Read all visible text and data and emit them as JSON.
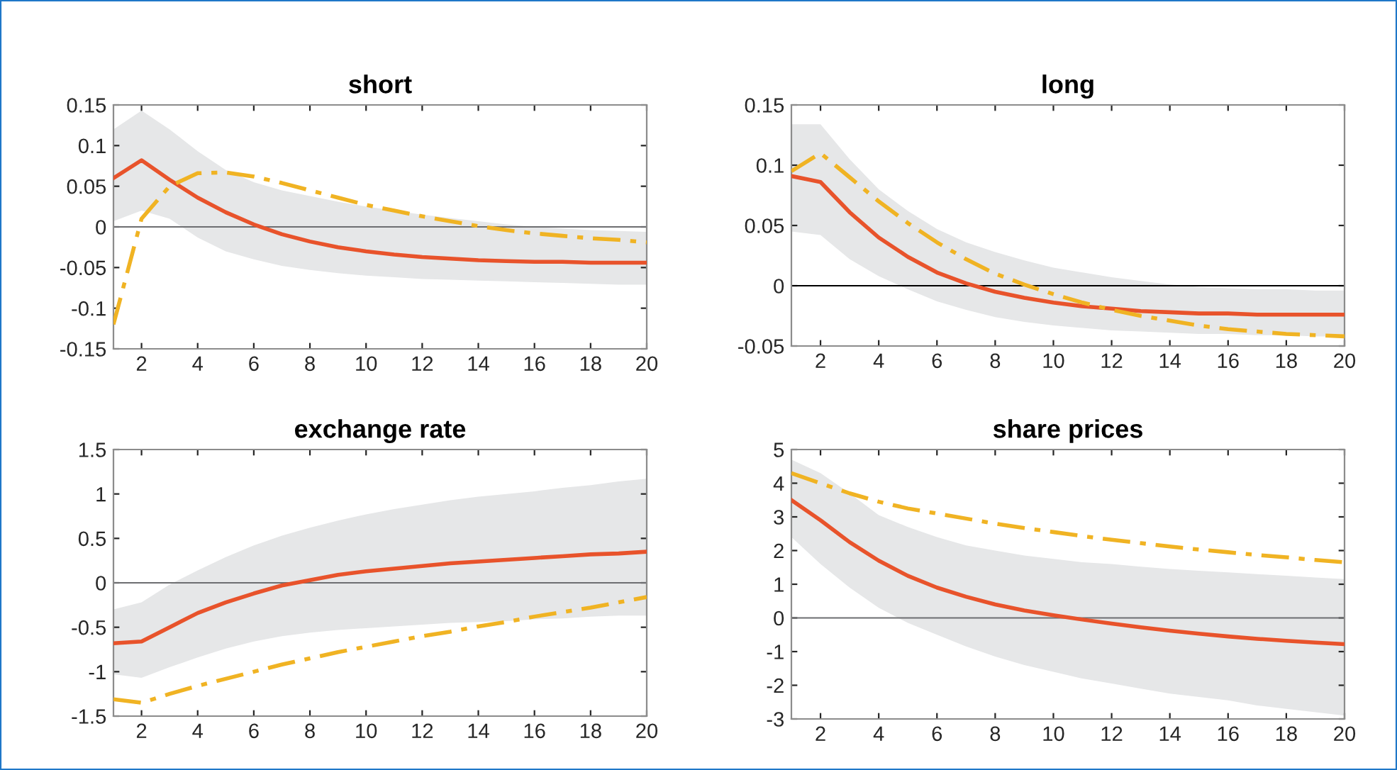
{
  "chart_data": [
    {
      "type": "line",
      "title": "short",
      "x": [
        1,
        2,
        3,
        4,
        5,
        6,
        7,
        8,
        9,
        10,
        11,
        12,
        13,
        14,
        15,
        16,
        17,
        18,
        19,
        20
      ],
      "series": [
        {
          "color": "#e8532b",
          "line_style": "solid",
          "values": [
            0.06,
            0.082,
            0.058,
            0.036,
            0.018,
            0.003,
            -0.009,
            -0.018,
            -0.025,
            -0.03,
            -0.034,
            -0.037,
            -0.039,
            -0.041,
            -0.042,
            -0.043,
            -0.043,
            -0.044,
            -0.044,
            -0.044
          ],
          "upper": [
            0.12,
            0.143,
            0.12,
            0.093,
            0.07,
            0.055,
            0.045,
            0.038,
            0.031,
            0.025,
            0.02,
            0.015,
            0.011,
            0.007,
            0.003,
            0.0,
            -0.002,
            -0.004,
            -0.005,
            -0.006
          ],
          "lower": [
            0.007,
            0.02,
            0.01,
            -0.013,
            -0.03,
            -0.04,
            -0.048,
            -0.053,
            -0.057,
            -0.06,
            -0.062,
            -0.064,
            -0.065,
            -0.066,
            -0.067,
            -0.068,
            -0.069,
            -0.07,
            -0.071,
            -0.071
          ]
        },
        {
          "color": "#f0b323",
          "line_style": "dashed",
          "values": [
            -0.12,
            0.01,
            0.05,
            0.066,
            0.067,
            0.062,
            0.054,
            0.045,
            0.036,
            0.027,
            0.02,
            0.013,
            0.007,
            0.001,
            -0.004,
            -0.008,
            -0.011,
            -0.014,
            -0.016,
            -0.019
          ]
        }
      ],
      "xlim": [
        1,
        20
      ],
      "xticks": [
        2,
        4,
        6,
        8,
        10,
        12,
        14,
        16,
        18,
        20
      ],
      "ylim": [
        -0.15,
        0.15
      ],
      "yticks": [
        -0.15,
        -0.1,
        -0.05,
        0,
        0.05,
        0.1,
        0.15
      ],
      "ref_lines": [
        {
          "axis": "y",
          "value": 0,
          "color": "#6d6e71"
        }
      ],
      "grid": false,
      "legend": false
    },
    {
      "type": "line",
      "title": "long",
      "x": [
        1,
        2,
        3,
        4,
        5,
        6,
        7,
        8,
        9,
        10,
        11,
        12,
        13,
        14,
        15,
        16,
        17,
        18,
        19,
        20
      ],
      "series": [
        {
          "color": "#e8532b",
          "line_style": "solid",
          "values": [
            0.091,
            0.086,
            0.061,
            0.04,
            0.024,
            0.011,
            0.002,
            -0.005,
            -0.01,
            -0.014,
            -0.017,
            -0.019,
            -0.021,
            -0.022,
            -0.023,
            -0.023,
            -0.024,
            -0.024,
            -0.024,
            -0.024
          ],
          "upper": [
            0.134,
            0.134,
            0.105,
            0.08,
            0.062,
            0.047,
            0.036,
            0.028,
            0.021,
            0.015,
            0.011,
            0.007,
            0.004,
            0.001,
            -0.001,
            -0.002,
            -0.003,
            -0.003,
            -0.004,
            -0.004
          ],
          "lower": [
            0.045,
            0.042,
            0.022,
            0.008,
            -0.003,
            -0.013,
            -0.02,
            -0.026,
            -0.03,
            -0.033,
            -0.035,
            -0.037,
            -0.038,
            -0.039,
            -0.04,
            -0.04,
            -0.041,
            -0.041,
            -0.042,
            -0.042
          ]
        },
        {
          "color": "#f0b323",
          "line_style": "dashed",
          "values": [
            0.095,
            0.11,
            0.09,
            0.07,
            0.052,
            0.036,
            0.022,
            0.01,
            0.001,
            -0.007,
            -0.014,
            -0.02,
            -0.025,
            -0.029,
            -0.033,
            -0.036,
            -0.038,
            -0.04,
            -0.041,
            -0.042
          ]
        }
      ],
      "xlim": [
        1,
        20
      ],
      "xticks": [
        2,
        4,
        6,
        8,
        10,
        12,
        14,
        16,
        18,
        20
      ],
      "ylim": [
        -0.05,
        0.15
      ],
      "yticks": [
        -0.05,
        0,
        0.05,
        0.1,
        0.15
      ],
      "ref_lines": [
        {
          "axis": "y",
          "value": 0,
          "color": "#000000"
        }
      ],
      "grid": false,
      "legend": false
    },
    {
      "type": "line",
      "title": "exchange rate",
      "x": [
        1,
        2,
        3,
        4,
        5,
        6,
        7,
        8,
        9,
        10,
        11,
        12,
        13,
        14,
        15,
        16,
        17,
        18,
        19,
        20
      ],
      "series": [
        {
          "color": "#e8532b",
          "line_style": "solid",
          "values": [
            -0.68,
            -0.66,
            -0.5,
            -0.34,
            -0.22,
            -0.12,
            -0.03,
            0.03,
            0.09,
            0.13,
            0.16,
            0.19,
            0.22,
            0.24,
            0.26,
            0.28,
            0.3,
            0.32,
            0.33,
            0.35
          ],
          "upper": [
            -0.3,
            -0.22,
            -0.02,
            0.14,
            0.29,
            0.42,
            0.53,
            0.62,
            0.7,
            0.77,
            0.83,
            0.88,
            0.93,
            0.97,
            1.0,
            1.03,
            1.07,
            1.1,
            1.14,
            1.17
          ],
          "lower": [
            -1.03,
            -1.07,
            -0.95,
            -0.84,
            -0.74,
            -0.66,
            -0.6,
            -0.56,
            -0.53,
            -0.51,
            -0.49,
            -0.47,
            -0.45,
            -0.44,
            -0.43,
            -0.41,
            -0.4,
            -0.38,
            -0.37,
            -0.37
          ]
        },
        {
          "color": "#f0b323",
          "line_style": "dashed",
          "values": [
            -1.31,
            -1.35,
            -1.25,
            -1.16,
            -1.08,
            -1.0,
            -0.92,
            -0.85,
            -0.78,
            -0.72,
            -0.66,
            -0.6,
            -0.55,
            -0.49,
            -0.44,
            -0.38,
            -0.33,
            -0.28,
            -0.22,
            -0.16
          ]
        }
      ],
      "xlim": [
        1,
        20
      ],
      "xticks": [
        2,
        4,
        6,
        8,
        10,
        12,
        14,
        16,
        18,
        20
      ],
      "ylim": [
        -1.5,
        1.5
      ],
      "yticks": [
        -1.5,
        -1,
        -0.5,
        0,
        0.5,
        1,
        1.5
      ],
      "ref_lines": [
        {
          "axis": "y",
          "value": 0,
          "color": "#6d6e71"
        }
      ],
      "grid": false,
      "legend": false
    },
    {
      "type": "line",
      "title": "share prices",
      "x": [
        1,
        2,
        3,
        4,
        5,
        6,
        7,
        8,
        9,
        10,
        11,
        12,
        13,
        14,
        15,
        16,
        17,
        18,
        19,
        20
      ],
      "series": [
        {
          "color": "#e8532b",
          "line_style": "solid",
          "values": [
            3.5,
            2.9,
            2.25,
            1.7,
            1.25,
            0.9,
            0.63,
            0.4,
            0.22,
            0.08,
            -0.05,
            -0.17,
            -0.28,
            -0.38,
            -0.47,
            -0.55,
            -0.62,
            -0.68,
            -0.73,
            -0.78
          ],
          "upper": [
            4.7,
            4.3,
            3.7,
            3.05,
            2.7,
            2.4,
            2.15,
            2.0,
            1.85,
            1.75,
            1.65,
            1.6,
            1.52,
            1.45,
            1.4,
            1.35,
            1.3,
            1.25,
            1.2,
            1.15
          ],
          "lower": [
            2.4,
            1.6,
            0.9,
            0.3,
            -0.15,
            -0.5,
            -0.85,
            -1.15,
            -1.4,
            -1.6,
            -1.8,
            -1.95,
            -2.1,
            -2.25,
            -2.35,
            -2.45,
            -2.6,
            -2.7,
            -2.8,
            -2.9
          ]
        },
        {
          "color": "#f0b323",
          "line_style": "dashed",
          "values": [
            4.3,
            4.0,
            3.7,
            3.45,
            3.25,
            3.1,
            2.95,
            2.8,
            2.67,
            2.55,
            2.43,
            2.32,
            2.22,
            2.12,
            2.03,
            1.95,
            1.87,
            1.8,
            1.72,
            1.65
          ]
        }
      ],
      "xlim": [
        1,
        20
      ],
      "xticks": [
        2,
        4,
        6,
        8,
        10,
        12,
        14,
        16,
        18,
        20
      ],
      "ylim": [
        -3,
        5
      ],
      "yticks": [
        -3,
        -2,
        -1,
        0,
        1,
        2,
        3,
        4,
        5
      ],
      "ref_lines": [
        {
          "axis": "y",
          "value": 0,
          "color": "#6d6e71"
        }
      ],
      "grid": false,
      "legend": false
    }
  ]
}
